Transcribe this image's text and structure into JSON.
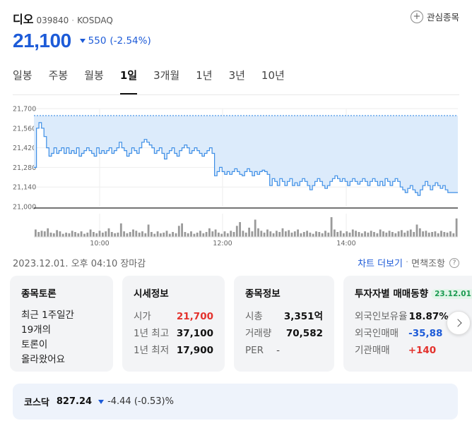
{
  "stock": {
    "name": "디오",
    "code": "039840",
    "separator": "·",
    "exchange": "KOSDAQ",
    "price": "21,100",
    "change": "550",
    "change_pct": "(-2.54%)",
    "favorite_label": "관심종목"
  },
  "tabs": [
    {
      "label": "일봉"
    },
    {
      "label": "주봉"
    },
    {
      "label": "월봉"
    },
    {
      "label": "1일"
    },
    {
      "label": "3개월"
    },
    {
      "label": "1년"
    },
    {
      "label": "3년"
    },
    {
      "label": "10년"
    }
  ],
  "active_tab": 3,
  "chart_data": {
    "type": "area",
    "title": "",
    "xlabel": "",
    "ylabel": "",
    "x_ticks": [
      "10:00",
      "12:00",
      "14:00"
    ],
    "y_ticks": [
      "21,700",
      "21,560",
      "21,420",
      "21,280",
      "21,140",
      "21,000"
    ],
    "ylim": [
      21000,
      21700
    ],
    "reference_line": 21650,
    "grid": true,
    "colors": {
      "line": "#3d8ee6",
      "fill": "#dcebfb",
      "reference": "#3d8ee6",
      "volume": "#9a9a9a"
    },
    "series": [
      {
        "values": [
          21280,
          21560,
          21600,
          21560,
          21500,
          21420,
          21360,
          21380,
          21420,
          21380,
          21400,
          21420,
          21380,
          21420,
          21380,
          21400,
          21380,
          21420,
          21360,
          21380,
          21400,
          21420,
          21400,
          21380,
          21360,
          21420,
          21380,
          21400,
          21380,
          21400,
          21420,
          21380,
          21400,
          21420,
          21460,
          21420,
          21400,
          21360,
          21380,
          21420,
          21400,
          21380,
          21420,
          21460,
          21480,
          21460,
          21440,
          21420,
          21380,
          21400,
          21420,
          21380,
          21340,
          21380,
          21400,
          21420,
          21380,
          21360,
          21400,
          21420,
          21440,
          21420,
          21380,
          21400,
          21420,
          21400,
          21380,
          21360,
          21380,
          21400,
          21420,
          21380,
          21220,
          21250,
          21280,
          21250,
          21230,
          21250,
          21230,
          21250,
          21270,
          21250,
          21230,
          21220,
          21250,
          21270,
          21250,
          21220,
          21250,
          21230,
          21250,
          21260,
          21250,
          21230,
          21150,
          21200,
          21180,
          21150,
          21200,
          21180,
          21150,
          21180,
          21200,
          21150,
          21170,
          21150,
          21180,
          21200,
          21180,
          21150,
          21120,
          21150,
          21180,
          21200,
          21180,
          21150,
          21130,
          21150,
          21180,
          21200,
          21220,
          21200,
          21180,
          21200,
          21180,
          21150,
          21180,
          21200,
          21180,
          21160,
          21180,
          21200,
          21180,
          21150,
          21180,
          21200,
          21180,
          21150,
          21180,
          21150,
          21200,
          21180,
          21150,
          21180,
          21200,
          21180,
          21140,
          21120,
          21100,
          21130,
          21150,
          21120,
          21100,
          21080,
          21120,
          21150,
          21180,
          21150,
          21120,
          21150,
          21170,
          21150,
          21130,
          21150,
          21120,
          21100,
          21100,
          21100,
          21100,
          21100
        ]
      }
    ],
    "volume": [
      12,
      8,
      10,
      9,
      14,
      7,
      6,
      11,
      9,
      5,
      7,
      6,
      10,
      8,
      6,
      9,
      5,
      7,
      12,
      8,
      6,
      10,
      7,
      9,
      14,
      8,
      6,
      7,
      22,
      9,
      6,
      8,
      12,
      10,
      7,
      9,
      6,
      20,
      8,
      5,
      9,
      6,
      7,
      10,
      5,
      8,
      6,
      18,
      22,
      8,
      6,
      9,
      5,
      7,
      10,
      6,
      8,
      14,
      9,
      12,
      7,
      5,
      9,
      6,
      10,
      8,
      18,
      24,
      10,
      7,
      15,
      9,
      28,
      14,
      10,
      7,
      12,
      9,
      6,
      10,
      8,
      14,
      9,
      11,
      7,
      9,
      12,
      6,
      8,
      10,
      7,
      5,
      9,
      8,
      6,
      10,
      7,
      32,
      12,
      8,
      10,
      6,
      9,
      7,
      12,
      10,
      8,
      6,
      9,
      7,
      10,
      8,
      6,
      12,
      9,
      7,
      10,
      8,
      6,
      9,
      11,
      7,
      10,
      12,
      8,
      20,
      14,
      9,
      10,
      7,
      8,
      9,
      6,
      10,
      8,
      7,
      9,
      6,
      30
    ]
  },
  "meta": {
    "datetime": "2023.12.01. 오후 04:10 장마감",
    "chart_more": "차트 더보기",
    "separator": "·",
    "disclaimer": "면책조항",
    "help_glyph": "?"
  },
  "cards": {
    "discussion": {
      "title": "종목토론",
      "lines": [
        "최근 1주일간",
        "19개의",
        "토론이",
        "올라왔어요"
      ]
    },
    "quote": {
      "title": "시세정보",
      "rows": [
        {
          "label": "시가",
          "value": "21,700"
        },
        {
          "label": "1년 최고",
          "value": "37,100"
        },
        {
          "label": "1년 최저",
          "value": "17,900"
        }
      ]
    },
    "info": {
      "title": "종목정보",
      "rows": [
        {
          "label": "시총",
          "value": "3,351억"
        },
        {
          "label": "거래량",
          "value": "70,582"
        },
        {
          "label": "PER",
          "value": "-"
        }
      ]
    },
    "investor": {
      "title": "투자자별 매매동향",
      "badge": "23.12.01",
      "rows": [
        {
          "label": "외국인보유율",
          "value": "18.87%"
        },
        {
          "label": "외국인매매",
          "value": "-35,88"
        },
        {
          "label": "기관매매",
          "value": "+140"
        }
      ]
    }
  },
  "kosdaq": {
    "name": "코스닥",
    "value": "827.24",
    "change": "-4.44 (-0.53)%"
  }
}
